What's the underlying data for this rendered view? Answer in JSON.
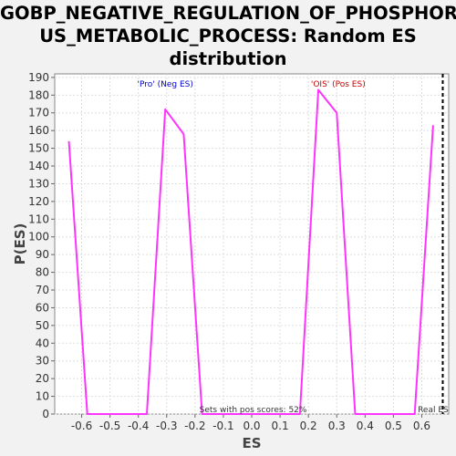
{
  "chart_data": {
    "type": "line",
    "title_lines": [
      "GOBP_NEGATIVE_REGULATION_OF_PHOSPHOR",
      "US_METABOLIC_PROCESS: Random ES",
      "distribution"
    ],
    "xlabel": "ES",
    "ylabel": "P(ES)",
    "xlim": [
      -0.695,
      0.695
    ],
    "ylim": [
      0,
      192
    ],
    "xticks": [
      -0.6,
      -0.5,
      -0.4,
      -0.3,
      -0.2,
      -0.1,
      0.0,
      0.1,
      0.2,
      0.3,
      0.4,
      0.5,
      0.6
    ],
    "xtick_labels": [
      "-0.6",
      "-0.5",
      "-0.4",
      "-0.3",
      "-0.2",
      "-0.1",
      "0.0",
      "0.1",
      "0.2",
      "0.3",
      "0.4",
      "0.5",
      "0.6"
    ],
    "yticks": [
      0,
      10,
      20,
      30,
      40,
      50,
      60,
      70,
      80,
      90,
      100,
      110,
      120,
      130,
      140,
      150,
      160,
      170,
      180,
      190
    ],
    "grid": true,
    "series": [
      {
        "color": "#ff33ff",
        "x": [
          -0.645,
          -0.58,
          -0.37,
          -0.305,
          -0.24,
          -0.175,
          0.17,
          0.235,
          0.3,
          0.365,
          0.575,
          0.64
        ],
        "y": [
          154,
          0,
          0,
          172,
          158,
          0,
          0,
          183,
          170,
          0,
          0,
          163
        ]
      }
    ],
    "real_es": 0.674,
    "annotations": {
      "neg": {
        "text": "'Pro' (Neg ES)",
        "color": "#0000cc"
      },
      "pos": {
        "text": "'OIS' (Pos ES)",
        "color": "#cc0000"
      },
      "pos_fraction": {
        "text": "Sets with pos scores: 52%",
        "color": "#333333"
      },
      "real_es": {
        "text": "Real ES",
        "color": "#333333"
      }
    }
  }
}
